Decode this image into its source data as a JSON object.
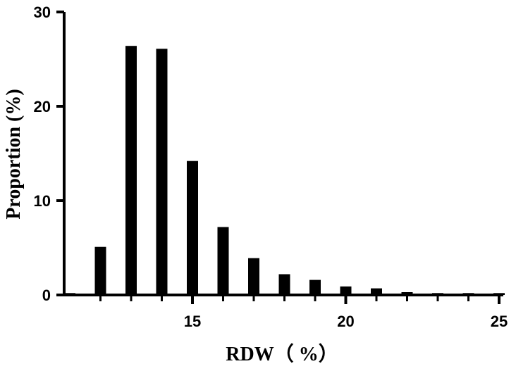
{
  "chart_data": {
    "type": "bar",
    "xlabel": "RDW（ %）",
    "ylabel": "Proportion (%)",
    "xlim": [
      11,
      25
    ],
    "ylim": [
      0,
      30
    ],
    "xticks": [
      15,
      20,
      25
    ],
    "yticks": [
      0,
      10,
      20,
      30
    ],
    "x": [
      11,
      12,
      13,
      14,
      15,
      16,
      17,
      18,
      19,
      20,
      21,
      22,
      23,
      24,
      25
    ],
    "values": [
      0.2,
      5.1,
      26.4,
      26.1,
      14.2,
      7.2,
      3.9,
      2.2,
      1.6,
      0.9,
      0.7,
      0.3,
      0.2,
      0.2,
      0.2
    ],
    "grid": false,
    "bar_color": "#000000"
  }
}
